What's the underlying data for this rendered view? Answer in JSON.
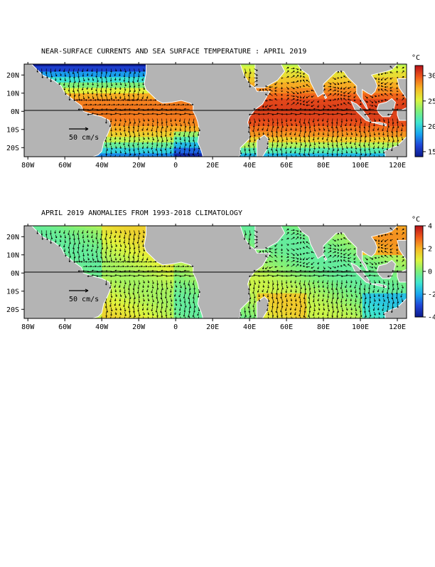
{
  "panels": [
    {
      "id": "sst",
      "title": "NEAR-SURFACE CURRENTS AND SEA SURFACE TEMPERATURE : APRIL 2019",
      "reference_arrow_label": "50 cm/s",
      "colorbar": {
        "unit": "°C",
        "ticks": [
          "30",
          "25",
          "20",
          "15"
        ],
        "range": [
          14,
          32
        ],
        "colors": [
          "#0b1a8c",
          "#1f45d8",
          "#18a6f0",
          "#3ee6d0",
          "#7ef07a",
          "#dff43c",
          "#f7b624",
          "#f05a1a",
          "#b8101a"
        ]
      },
      "field": "temperature"
    },
    {
      "id": "anom",
      "title": "APRIL 2019 ANOMALIES FROM 1993-2018 CLIMATOLOGY",
      "reference_arrow_label": "50 cm/s",
      "colorbar": {
        "unit": "°C",
        "ticks": [
          "4",
          "2",
          "0",
          "-2",
          "-4"
        ],
        "range": [
          -4,
          4
        ],
        "colors": [
          "#0b1a8c",
          "#1f45d8",
          "#18a6f0",
          "#3ee6d0",
          "#7ef07a",
          "#dff43c",
          "#f7b624",
          "#f05a1a",
          "#b8101a"
        ]
      },
      "field": "anomaly"
    }
  ],
  "lon_labels": [
    "80W",
    "60W",
    "40W",
    "20W",
    "0",
    "20E",
    "40E",
    "60E",
    "80E",
    "100E",
    "120E"
  ],
  "lat_labels": [
    "20N",
    "10N",
    "0N",
    "10S",
    "20S"
  ],
  "colors": {
    "land": "#b4b4b4",
    "frame": "#000000",
    "arrows": "#000000"
  }
}
